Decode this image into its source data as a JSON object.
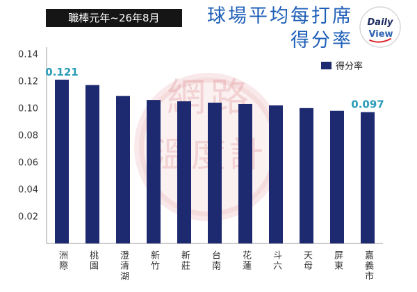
{
  "colors": {
    "bar": "#1d2a6f",
    "title": "#1f5fb8",
    "data_label": "#2a9cb8",
    "period_bg": "#151515",
    "period_text": "#ffffff",
    "axis_text": "#333333",
    "axis_line": "#9a9a9a",
    "watermark": "#d9767a",
    "logo_text": "#1c2b5e",
    "logo_text_2": "#2f63b0",
    "logo_accent": "#d9252b"
  },
  "logo": {
    "line1": "Daily",
    "line2": "View"
  },
  "watermark": {
    "line1": "網路",
    "line2": "溫度計"
  },
  "chart_data": {
    "type": "bar",
    "title_lines": [
      "球場平均每打席",
      "得分率"
    ],
    "subtitle": "職棒元年~26年8月",
    "categories": [
      "洲際",
      "桃園",
      "澄清湖",
      "新竹",
      "新莊",
      "台南",
      "花蓮",
      "斗六",
      "天母",
      "屏東",
      "嘉義市"
    ],
    "series": [
      {
        "name": "得分率",
        "values": [
          0.121,
          0.117,
          0.109,
          0.106,
          0.105,
          0.104,
          0.103,
          0.102,
          0.1,
          0.098,
          0.097
        ]
      }
    ],
    "data_labels": [
      {
        "index": 0,
        "text": "0.121"
      },
      {
        "index": 10,
        "text": "0.097"
      }
    ],
    "yticks": [
      "0.02",
      "0.04",
      "0.06",
      "0.08",
      "0.10",
      "0.12",
      "0.14"
    ],
    "ylim": [
      0,
      0.145
    ],
    "grid": false,
    "legend": {
      "position": "top-right"
    }
  }
}
